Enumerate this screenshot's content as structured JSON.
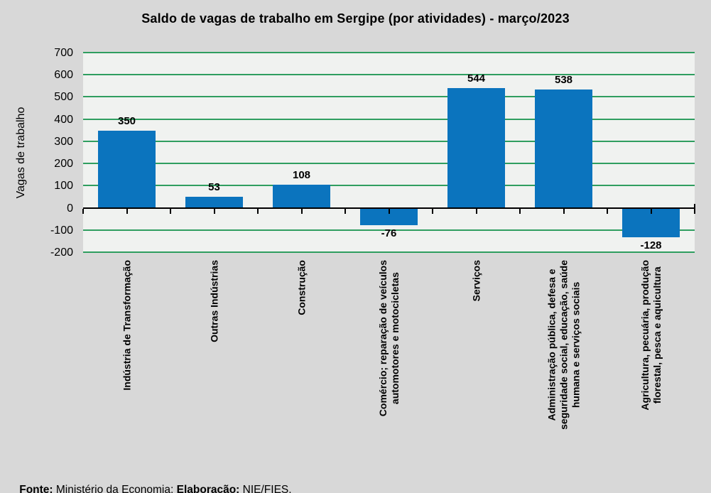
{
  "chart_data": {
    "type": "bar",
    "title": "Saldo de vagas de trabalho em Sergipe (por atividades) - março/2023",
    "ylabel": "Vagas de trabalho",
    "xlabel": "",
    "categories": [
      "Indústria de Transformação",
      "Outras Indústrias",
      "Construção",
      "Comércio; reparação de veículos\nautomotores e motocicletas",
      "Serviços",
      "Administração pública, defesa e\nseguridade social, educação, saúde\nhumana e serviços sociais",
      "Agricultura, pecuária, produção\nflorestal, pesca e aquicultura"
    ],
    "values": [
      350,
      53,
      108,
      -76,
      544,
      538,
      -128
    ],
    "value_labels": [
      "350",
      "53",
      "108",
      "-76",
      "544",
      "538",
      "-128"
    ],
    "ylim": [
      -200,
      700
    ],
    "yticks": [
      700,
      600,
      500,
      400,
      300,
      200,
      100,
      0,
      -100,
      -200
    ],
    "grid": true,
    "legend": "none",
    "colors": {
      "bar": "#0b74be",
      "gridline": "#2f9e60",
      "plot_bg": "#f0f2f0",
      "canvas_bg": "#d8d8d8",
      "axis": "#000000",
      "text": "#000000"
    }
  },
  "footer": {
    "fonte_label": "Fonte:",
    "fonte_text": " Ministério da Economia; ",
    "elaboracao_label": "Elaboração:",
    "elaboracao_text": " NIE/FIES."
  }
}
